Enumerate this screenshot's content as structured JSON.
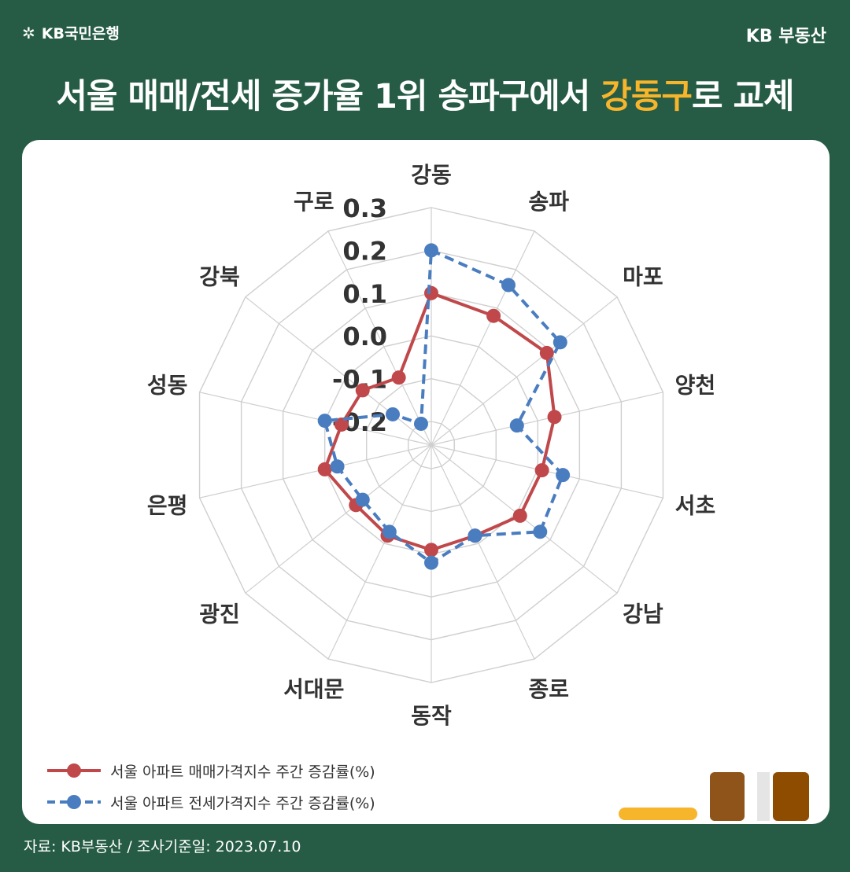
{
  "header": {
    "logo_text": "KB국민은행",
    "brand": "KB 부동산",
    "title_pre": "서울 매매/전세 증가율 1위 송파구에서 ",
    "title_highlight": "강동구",
    "title_post": "로 교체"
  },
  "colors": {
    "background": "#265c45",
    "highlight": "#f7b52c",
    "sale_series": "#c0484b",
    "jeonse_series": "#4a7dc0"
  },
  "chart_data": {
    "type": "radar",
    "categories": [
      "강동",
      "송파",
      "마포",
      "양천",
      "서초",
      "강남",
      "종로",
      "동작",
      "서대문",
      "광진",
      "은평",
      "성동",
      "강북",
      "구로"
    ],
    "rlim": [
      -0.2,
      0.3
    ],
    "ticks": [
      "0.3",
      "0.2",
      "0.1",
      "0.0",
      "-0.1",
      "-0.2"
    ],
    "series": [
      {
        "name": "서울 아파트 매매가격지수 주간 증감률(%)",
        "style": "solid",
        "values": [
          0.1,
          0.08,
          0.09,
          0.04,
          0.01,
          0.01,
          -0.02,
          -0.01,
          -0.02,
          -0.03,
          0.0,
          -0.04,
          -0.05,
          -0.08
        ]
      },
      {
        "name": "서울 아파트 전세가격지수 주간 증감률(%)",
        "style": "dashed",
        "values": [
          0.2,
          0.16,
          0.13,
          -0.05,
          0.06,
          0.07,
          -0.02,
          0.02,
          -0.03,
          -0.05,
          -0.03,
          0.0,
          -0.14,
          -0.2
        ]
      }
    ],
    "grid": true
  },
  "footer": {
    "source": "자료: KB부동산 / 조사기준일: 2023.07.10"
  }
}
